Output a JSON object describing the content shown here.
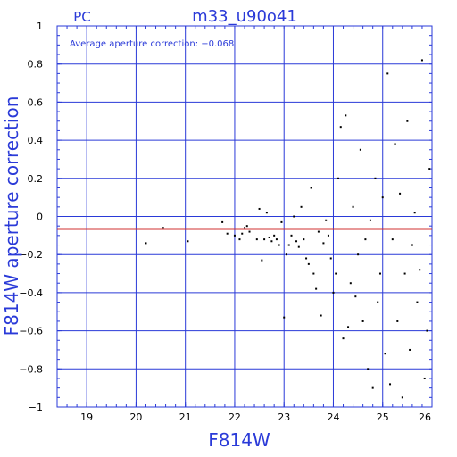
{
  "chart_data": {
    "type": "scatter",
    "title": "m33_u90o41",
    "corner_label": "PC",
    "annotation": "Average aperture correction: −0.068",
    "xlabel": "F814W",
    "ylabel": "F814W aperture correction",
    "xlim": [
      18.4,
      26
    ],
    "ylim": [
      -1,
      1
    ],
    "x_ticks": [
      19,
      20,
      21,
      22,
      23,
      24,
      25,
      26
    ],
    "x_tick_labels": [
      "19",
      "20",
      "21",
      "22",
      "23",
      "24",
      "25",
      "26"
    ],
    "y_ticks": [
      1,
      0.8,
      0.6,
      0.4,
      0.2,
      0,
      -0.2,
      -0.4,
      -0.6,
      -0.8,
      -1
    ],
    "y_tick_labels": [
      "1",
      "0.8",
      "0.6",
      "0.4",
      "0.2",
      "0",
      "−0.2",
      "−0.4",
      "−0.6",
      "−0.8",
      "−1"
    ],
    "grid": true,
    "reference_line": {
      "y": -0.068,
      "color": "#d03030"
    },
    "colors": {
      "axes": "#2a3ad8",
      "grid": "#2a3ad8",
      "points": "#000000",
      "reference": "#d03030"
    },
    "points": [
      [
        20.2,
        -0.14
      ],
      [
        20.55,
        -0.06
      ],
      [
        21.05,
        -0.13
      ],
      [
        21.75,
        -0.03
      ],
      [
        21.85,
        -0.09
      ],
      [
        22.0,
        -0.1
      ],
      [
        22.1,
        -0.12
      ],
      [
        22.15,
        -0.09
      ],
      [
        22.2,
        -0.06
      ],
      [
        22.25,
        -0.05
      ],
      [
        22.3,
        -0.08
      ],
      [
        22.45,
        -0.12
      ],
      [
        22.5,
        0.04
      ],
      [
        22.55,
        -0.23
      ],
      [
        22.6,
        -0.12
      ],
      [
        22.65,
        0.02
      ],
      [
        22.7,
        -0.11
      ],
      [
        22.75,
        -0.13
      ],
      [
        22.8,
        -0.1
      ],
      [
        22.85,
        -0.12
      ],
      [
        22.9,
        -0.15
      ],
      [
        22.95,
        -0.03
      ],
      [
        23.0,
        -0.53
      ],
      [
        23.05,
        -0.2
      ],
      [
        23.1,
        -0.15
      ],
      [
        23.15,
        -0.1
      ],
      [
        23.2,
        0.0
      ],
      [
        23.25,
        -0.13
      ],
      [
        23.3,
        -0.16
      ],
      [
        23.35,
        0.05
      ],
      [
        23.4,
        -0.12
      ],
      [
        23.45,
        -0.22
      ],
      [
        23.5,
        -0.25
      ],
      [
        23.55,
        0.15
      ],
      [
        23.6,
        -0.3
      ],
      [
        23.65,
        -0.38
      ],
      [
        23.7,
        -0.08
      ],
      [
        23.75,
        -0.52
      ],
      [
        23.8,
        -0.14
      ],
      [
        23.85,
        -0.02
      ],
      [
        23.9,
        -0.1
      ],
      [
        23.95,
        -0.22
      ],
      [
        24.0,
        -0.4
      ],
      [
        24.05,
        -0.3
      ],
      [
        24.1,
        0.2
      ],
      [
        24.15,
        0.47
      ],
      [
        24.2,
        -0.64
      ],
      [
        24.25,
        0.53
      ],
      [
        24.3,
        -0.58
      ],
      [
        24.35,
        -0.35
      ],
      [
        24.4,
        0.05
      ],
      [
        24.45,
        -0.42
      ],
      [
        24.5,
        -0.2
      ],
      [
        24.55,
        0.35
      ],
      [
        24.6,
        -0.55
      ],
      [
        24.65,
        -0.12
      ],
      [
        24.7,
        -0.8
      ],
      [
        24.75,
        -0.02
      ],
      [
        24.8,
        -0.9
      ],
      [
        24.85,
        0.2
      ],
      [
        24.9,
        -0.45
      ],
      [
        24.95,
        -0.3
      ],
      [
        25.0,
        0.1
      ],
      [
        25.05,
        -0.72
      ],
      [
        25.1,
        0.75
      ],
      [
        25.15,
        -0.88
      ],
      [
        25.2,
        -0.12
      ],
      [
        25.25,
        0.38
      ],
      [
        25.3,
        -0.55
      ],
      [
        25.35,
        0.12
      ],
      [
        25.4,
        -0.95
      ],
      [
        25.45,
        -0.3
      ],
      [
        25.5,
        0.5
      ],
      [
        25.55,
        -0.7
      ],
      [
        25.6,
        -0.15
      ],
      [
        25.65,
        0.02
      ],
      [
        25.7,
        -0.45
      ],
      [
        25.75,
        -0.28
      ],
      [
        25.8,
        0.82
      ],
      [
        25.85,
        -0.85
      ],
      [
        25.9,
        -0.6
      ],
      [
        25.95,
        0.25
      ]
    ]
  }
}
